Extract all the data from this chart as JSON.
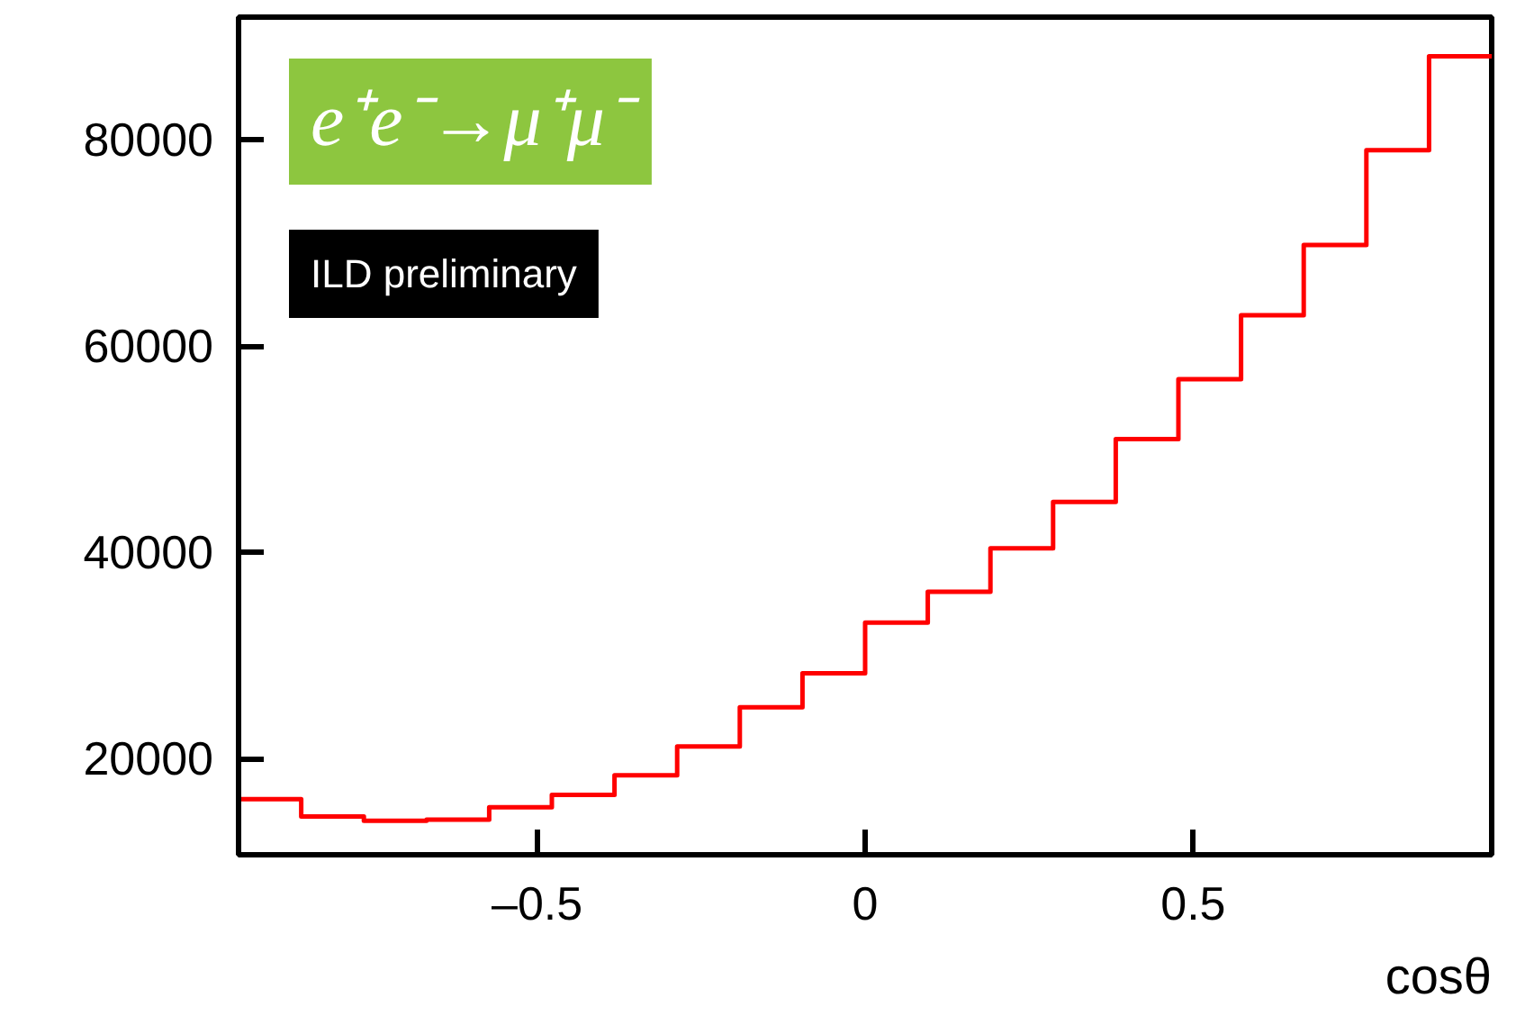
{
  "chart_data": {
    "type": "histogram",
    "xlabel": "cosθ",
    "annotations": [
      "e⁺e⁻→μ⁺μ⁻",
      "ILD preliminary"
    ],
    "bins": [
      -0.955,
      -0.8595,
      -0.764,
      -0.6685,
      -0.573,
      -0.4775,
      -0.382,
      -0.2865,
      -0.191,
      -0.0955,
      0,
      0.0955,
      0.191,
      0.2865,
      0.382,
      0.4775,
      0.573,
      0.6685,
      0.764,
      0.8595,
      0.955
    ],
    "values": [
      16100,
      14400,
      14000,
      14100,
      15300,
      16500,
      18400,
      21200,
      25000,
      28300,
      33200,
      36200,
      40400,
      44900,
      51000,
      56800,
      63000,
      69800,
      79000,
      88100
    ],
    "color": "#ff0000",
    "xlim": [
      -0.955,
      0.955
    ],
    "ylim": [
      10700,
      91900
    ],
    "xticks": [
      {
        "value": -0.5,
        "label": "–0.5"
      },
      0,
      0.5
    ],
    "yticks": [
      20000,
      40000,
      60000,
      80000
    ]
  }
}
